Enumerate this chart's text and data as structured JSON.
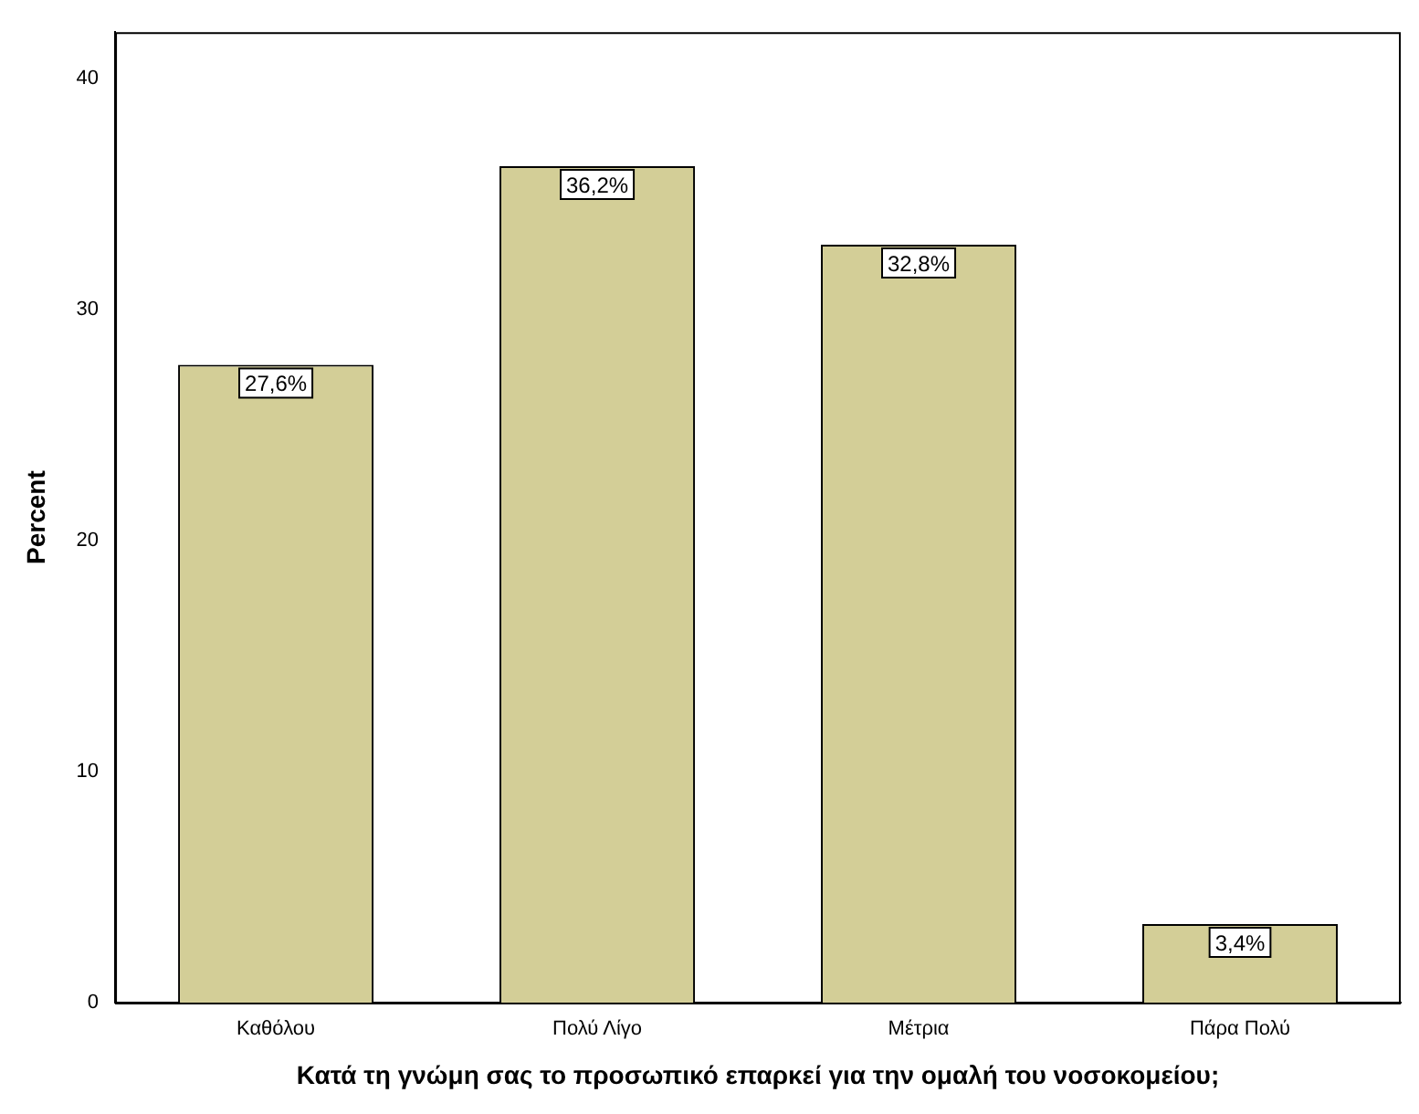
{
  "chart_data": {
    "type": "bar",
    "xlabel": "Κατά τη γνώμη σας το προσωπικό επαρκεί για την ομαλή του νοσοκομείου;",
    "ylabel": "Percent",
    "categories": [
      "Καθόλου",
      "Πολύ Λίγο",
      "Μέτρια",
      "Πάρα Πολύ"
    ],
    "values": [
      27.6,
      36.2,
      32.8,
      3.4
    ],
    "value_labels": [
      "27,6%",
      "36,2%",
      "32,8%",
      "3,4%"
    ],
    "color": "#d3ce97",
    "ylim": [
      0,
      42
    ],
    "yticks": [
      0,
      10,
      20,
      30,
      40
    ],
    "grid": false,
    "legend": false
  }
}
